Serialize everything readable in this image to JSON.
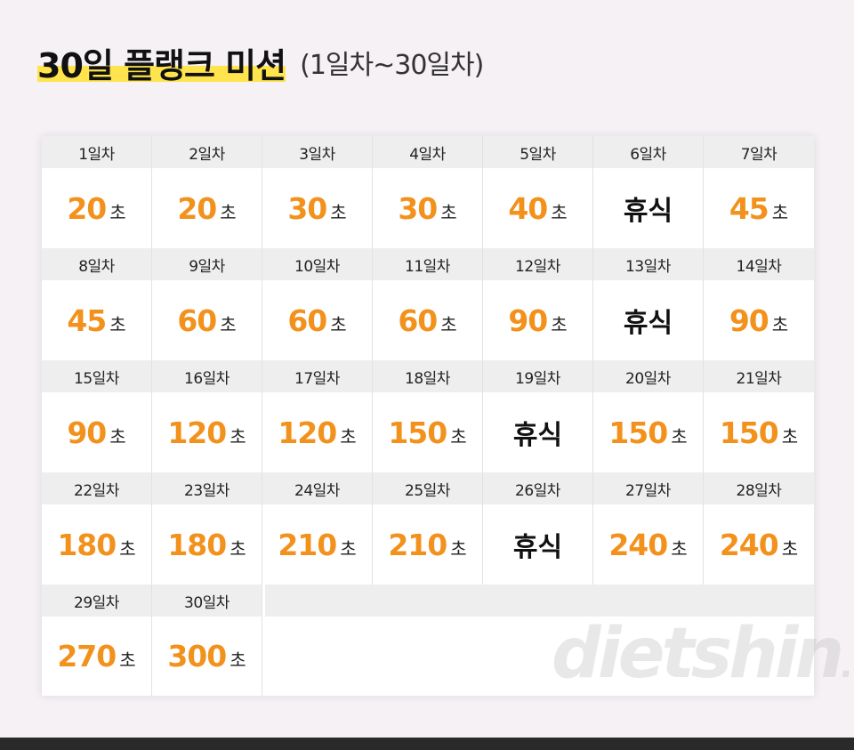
{
  "header": {
    "title": "30일 플랭크 미션",
    "subtitle": "(1일차~30일차)"
  },
  "unit": "초",
  "days": [
    {
      "label": "1일차",
      "value": "20"
    },
    {
      "label": "2일차",
      "value": "20"
    },
    {
      "label": "3일차",
      "value": "30"
    },
    {
      "label": "4일차",
      "value": "30"
    },
    {
      "label": "5일차",
      "value": "40"
    },
    {
      "label": "6일차",
      "value": "휴식"
    },
    {
      "label": "7일차",
      "value": "45"
    },
    {
      "label": "8일차",
      "value": "45"
    },
    {
      "label": "9일차",
      "value": "60"
    },
    {
      "label": "10일차",
      "value": "60"
    },
    {
      "label": "11일차",
      "value": "60"
    },
    {
      "label": "12일차",
      "value": "90"
    },
    {
      "label": "13일차",
      "value": "휴식"
    },
    {
      "label": "14일차",
      "value": "90"
    },
    {
      "label": "15일차",
      "value": "90"
    },
    {
      "label": "16일차",
      "value": "120"
    },
    {
      "label": "17일차",
      "value": "120"
    },
    {
      "label": "18일차",
      "value": "150"
    },
    {
      "label": "19일차",
      "value": "휴식"
    },
    {
      "label": "20일차",
      "value": "150"
    },
    {
      "label": "21일차",
      "value": "150"
    },
    {
      "label": "22일차",
      "value": "180"
    },
    {
      "label": "23일차",
      "value": "180"
    },
    {
      "label": "24일차",
      "value": "210"
    },
    {
      "label": "25일차",
      "value": "210"
    },
    {
      "label": "26일차",
      "value": "휴식"
    },
    {
      "label": "27일차",
      "value": "240"
    },
    {
      "label": "28일차",
      "value": "240"
    },
    {
      "label": "29일차",
      "value": "270"
    },
    {
      "label": "30일차",
      "value": "300"
    }
  ],
  "watermark": {
    "main": "dietshin",
    "suffix": ".com"
  },
  "colors": {
    "accent": "#f2921d",
    "highlight": "#ffe44d"
  }
}
